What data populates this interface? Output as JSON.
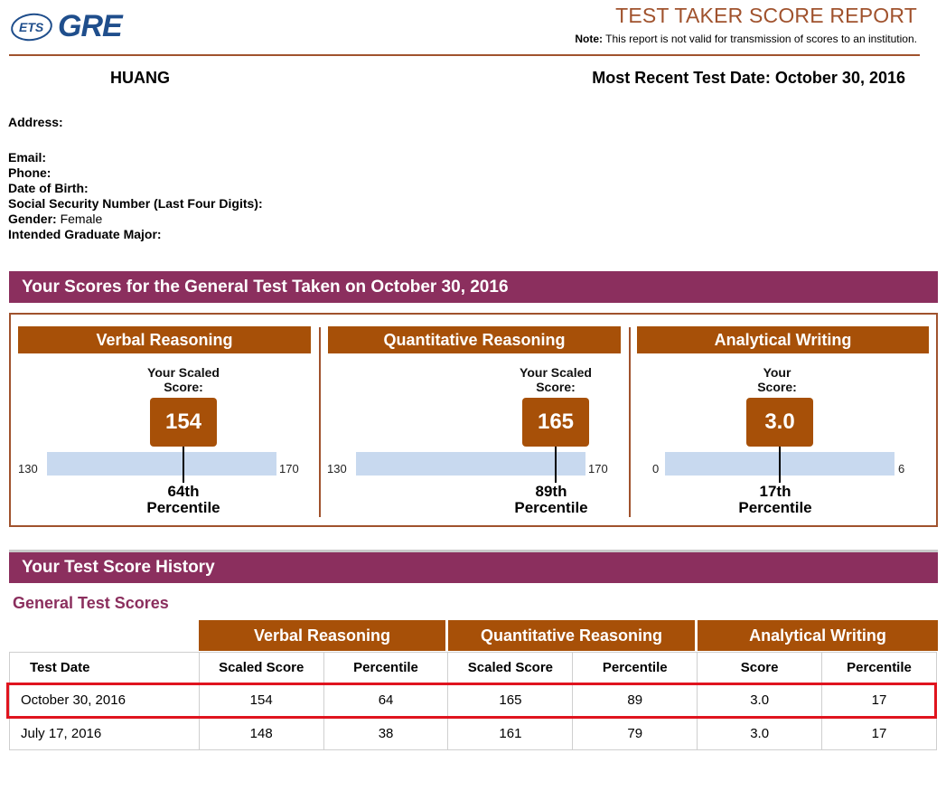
{
  "logo": {
    "ets": "ETS",
    "gre": "GRE"
  },
  "header": {
    "title": "TEST TAKER SCORE REPORT",
    "note_label": "Note:",
    "note_text": " This report is not valid for transmission of scores to an institution."
  },
  "taker": {
    "name": "HUANG",
    "recent_test": "Most Recent Test Date: October 30, 2016"
  },
  "info": {
    "address": "Address:",
    "email": "Email:",
    "phone": "Phone:",
    "dob": "Date of Birth:",
    "ssn": "Social Security Number (Last Four Digits):",
    "gender_label": "Gender:",
    "gender_value": " Female",
    "major": "Intended Graduate Major:"
  },
  "scores_section": {
    "title": "Your Scores for the General Test Taken on October 30, 2016",
    "sections": [
      {
        "name": "Verbal Reasoning",
        "label_line1": "Your Scaled",
        "label_line2": "Score:",
        "score": "154",
        "min": "130",
        "max": "170",
        "value": 154,
        "range": [
          130,
          170
        ],
        "percentile_line1": "64th",
        "percentile_line2": "Percentile"
      },
      {
        "name": "Quantitative Reasoning",
        "label_line1": "Your Scaled",
        "label_line2": "Score:",
        "score": "165",
        "min": "130",
        "max": "170",
        "value": 165,
        "range": [
          130,
          170
        ],
        "percentile_line1": "89th",
        "percentile_line2": "Percentile"
      },
      {
        "name": "Analytical Writing",
        "label_line1": "Your",
        "label_line2": "Score:",
        "score": "3.0",
        "min": "0",
        "max": "6",
        "value": 3.0,
        "range": [
          0,
          6
        ],
        "percentile_line1": "17th",
        "percentile_line2": "Percentile"
      }
    ]
  },
  "history": {
    "title": "Your Test Score History",
    "subtitle": "General Test Scores",
    "groups": [
      "Verbal Reasoning",
      "Quantitative Reasoning",
      "Analytical Writing"
    ],
    "columns": [
      "Test Date",
      "Scaled Score",
      "Percentile",
      "Scaled Score",
      "Percentile",
      "Score",
      "Percentile"
    ],
    "rows": [
      [
        "October 30, 2016",
        "154",
        "64",
        "165",
        "89",
        "3.0",
        "17"
      ],
      [
        "July 17, 2016",
        "148",
        "38",
        "161",
        "79",
        "3.0",
        "17"
      ]
    ]
  },
  "colors": {
    "accent_brown": "#a75008",
    "purple": "#8b2f5e",
    "highlight_red": "#e0141e"
  }
}
